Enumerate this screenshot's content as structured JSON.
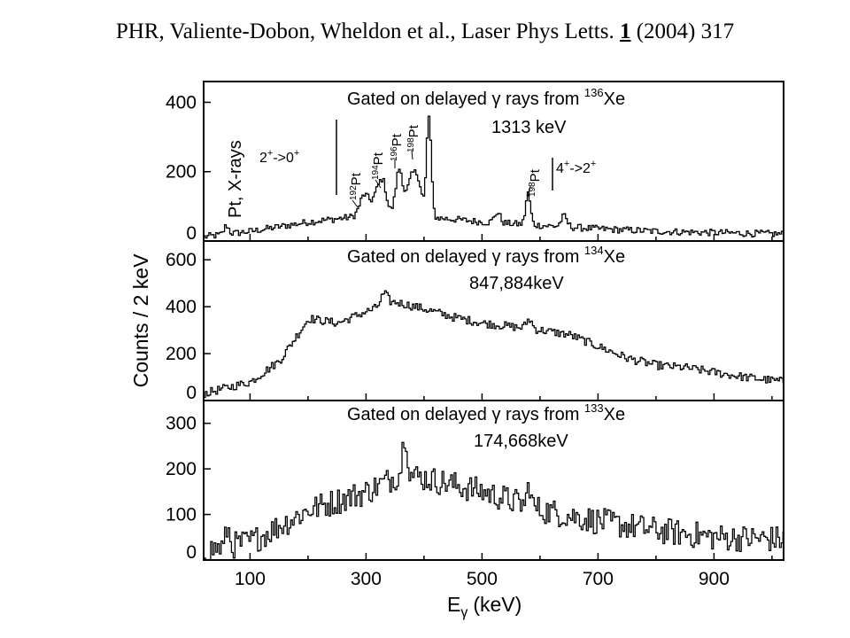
{
  "citation": {
    "authors": "PHR, Valiente-Dobon, Wheldon  et al., Laser Phys Letts.",
    "volume": "1",
    "rest": "(2004) 317"
  },
  "chart_data": {
    "type": "line",
    "xlabel": "E",
    "xlabel_sub": "γ",
    "xlabel_unit": "(keV)",
    "ylabel": "Counts / 2 keV",
    "xlim": [
      20,
      1020
    ],
    "xticks": [
      100,
      300,
      500,
      700,
      900
    ],
    "panels": [
      {
        "gate_prefix": "Gated on delayed γ rays from ",
        "isotope_mass": "136",
        "isotope_symbol": "Xe",
        "gate_energy": "1313 keV",
        "ylim": [
          0,
          460
        ],
        "yticks": [
          0,
          200,
          400
        ],
        "peaks": [
          {
            "energy": 296,
            "height": 60,
            "width": 8
          },
          {
            "energy": 317,
            "height": 55,
            "width": 7
          },
          {
            "energy": 328,
            "height": 80,
            "width": 6
          },
          {
            "energy": 356,
            "height": 130,
            "width": 6
          },
          {
            "energy": 378,
            "height": 110,
            "width": 8
          },
          {
            "energy": 390,
            "height": 70,
            "width": 6
          },
          {
            "energy": 407,
            "height": 290,
            "width": 4
          },
          {
            "energy": 578,
            "height": 90,
            "width": 4
          },
          {
            "energy": 525,
            "height": 30,
            "width": 5
          },
          {
            "energy": 640,
            "height": 30,
            "width": 5
          },
          {
            "energy": 58,
            "height": 25,
            "width": 4
          }
        ],
        "background": [
          [
            20,
            12
          ],
          [
            100,
            28
          ],
          [
            200,
            55
          ],
          [
            280,
            70
          ],
          [
            330,
            80
          ],
          [
            400,
            70
          ],
          [
            500,
            55
          ],
          [
            600,
            45
          ],
          [
            700,
            35
          ],
          [
            800,
            28
          ],
          [
            900,
            24
          ],
          [
            1020,
            20
          ]
        ],
        "noise": 10
      },
      {
        "gate_prefix": "Gated on delayed γ rays from ",
        "isotope_mass": "134",
        "isotope_symbol": "Xe",
        "gate_energy": "847,884keV",
        "ylim": [
          0,
          680
        ],
        "yticks": [
          0,
          200,
          400,
          600
        ],
        "peaks": [
          {
            "energy": 330,
            "height": 50,
            "width": 6
          },
          {
            "energy": 580,
            "height": 40,
            "width": 5
          }
        ],
        "background": [
          [
            20,
            30
          ],
          [
            100,
            80
          ],
          [
            150,
            170
          ],
          [
            200,
            350
          ],
          [
            250,
            330
          ],
          [
            300,
            380
          ],
          [
            350,
            420
          ],
          [
            400,
            390
          ],
          [
            450,
            355
          ],
          [
            500,
            330
          ],
          [
            550,
            315
          ],
          [
            600,
            300
          ],
          [
            650,
            280
          ],
          [
            700,
            230
          ],
          [
            750,
            180
          ],
          [
            800,
            150
          ],
          [
            850,
            140
          ],
          [
            900,
            120
          ],
          [
            950,
            100
          ],
          [
            1020,
            80
          ]
        ],
        "noise": 18
      },
      {
        "gate_prefix": "Gated on delayed γ rays from ",
        "isotope_mass": "133",
        "isotope_symbol": "Xe",
        "gate_energy": "174,668keV",
        "ylim": [
          0,
          350
        ],
        "yticks": [
          0,
          100,
          200,
          300
        ],
        "peaks": [
          {
            "energy": 366,
            "height": 90,
            "width": 4
          },
          {
            "energy": 580,
            "height": 50,
            "width": 3
          },
          {
            "energy": 60,
            "height": 40,
            "width": 3
          }
        ],
        "background": [
          [
            20,
            20
          ],
          [
            100,
            40
          ],
          [
            200,
            110
          ],
          [
            300,
            150
          ],
          [
            360,
            190
          ],
          [
            400,
            180
          ],
          [
            500,
            150
          ],
          [
            600,
            110
          ],
          [
            700,
            85
          ],
          [
            800,
            65
          ],
          [
            900,
            50
          ],
          [
            1020,
            45
          ]
        ],
        "noise": 30
      }
    ],
    "annotations": {
      "xray_label": "Pt, X-rays",
      "transition_left": "2",
      "transition_left_sup": "+",
      "transition_left_arrow": "->0",
      "transition_left_sup2": "+",
      "transition_right": "4",
      "transition_right_sup": "+",
      "transition_right_arrow": "->2",
      "transition_right_sup2": "+",
      "pt_labels": [
        {
          "mass": "192",
          "symbol": "Pt"
        },
        {
          "mass": "194",
          "symbol": "Pt"
        },
        {
          "mass": "196",
          "symbol": "Pt"
        },
        {
          "mass": "198",
          "symbol": "Pt"
        },
        {
          "mass": "198",
          "symbol": "Pt"
        }
      ]
    }
  }
}
